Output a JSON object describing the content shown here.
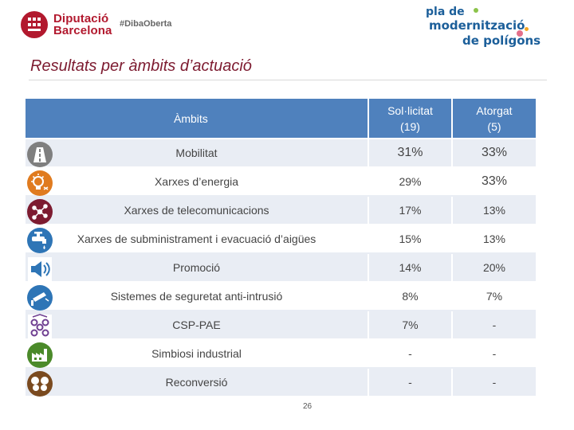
{
  "header": {
    "org_line1": "Diputació",
    "org_line2": "Barcelona",
    "hashtag": "#DibaOberta",
    "program_line1": "pla de",
    "program_line2": "modernització",
    "program_line3": "de polígons"
  },
  "title": "Resultats per àmbits d’actuació",
  "table": {
    "headers": {
      "ambits": "Àmbits",
      "sollicitat_line1": "Sol·licitat",
      "sollicitat_line2": "(19)",
      "atorgat_line1": "Atorgat",
      "atorgat_line2": "(5)"
    },
    "rows": [
      {
        "ambit": "Mobilitat",
        "sollicitat": "31%",
        "atorgat": "33%",
        "icon": "road-icon"
      },
      {
        "ambit": "Xarxes d’energia",
        "sollicitat": "29%",
        "atorgat": "33%",
        "icon": "lightbulb-icon"
      },
      {
        "ambit": "Xarxes de telecomunicacions",
        "sollicitat": "17%",
        "atorgat": "13%",
        "icon": "network-icon"
      },
      {
        "ambit": "Xarxes de subministrament i evacuació d’aigües",
        "sollicitat": "15%",
        "atorgat": "13%",
        "icon": "water-tap-icon"
      },
      {
        "ambit": "Promoció",
        "sollicitat": "14%",
        "atorgat": "20%",
        "icon": "megaphone-icon"
      },
      {
        "ambit": "Sistemes de seguretat anti-intrusió",
        "sollicitat": "8%",
        "atorgat": "7%",
        "icon": "security-camera-icon"
      },
      {
        "ambit": "CSP-PAE",
        "sollicitat": "7%",
        "atorgat": "-",
        "icon": "people-network-icon"
      },
      {
        "ambit": "Simbiosi industrial",
        "sollicitat": "-",
        "atorgat": "-",
        "icon": "factory-icon"
      },
      {
        "ambit": "Reconversió",
        "sollicitat": "-",
        "atorgat": "-",
        "icon": "butterfly-icon"
      }
    ]
  },
  "page_number": "26",
  "colors": {
    "header_blue": "#4f81bd",
    "row_stripe": "#e9edf4",
    "title_color": "#7d1b30",
    "brand_red": "#b2192e",
    "icon_grey": "#7f7f7f",
    "icon_orange": "#e07b1f",
    "icon_maroon": "#7d1b30",
    "icon_blue": "#2e75b6",
    "icon_purple": "#6f3f91",
    "icon_green": "#4b8a2a",
    "icon_brown": "#7a4a1f"
  }
}
